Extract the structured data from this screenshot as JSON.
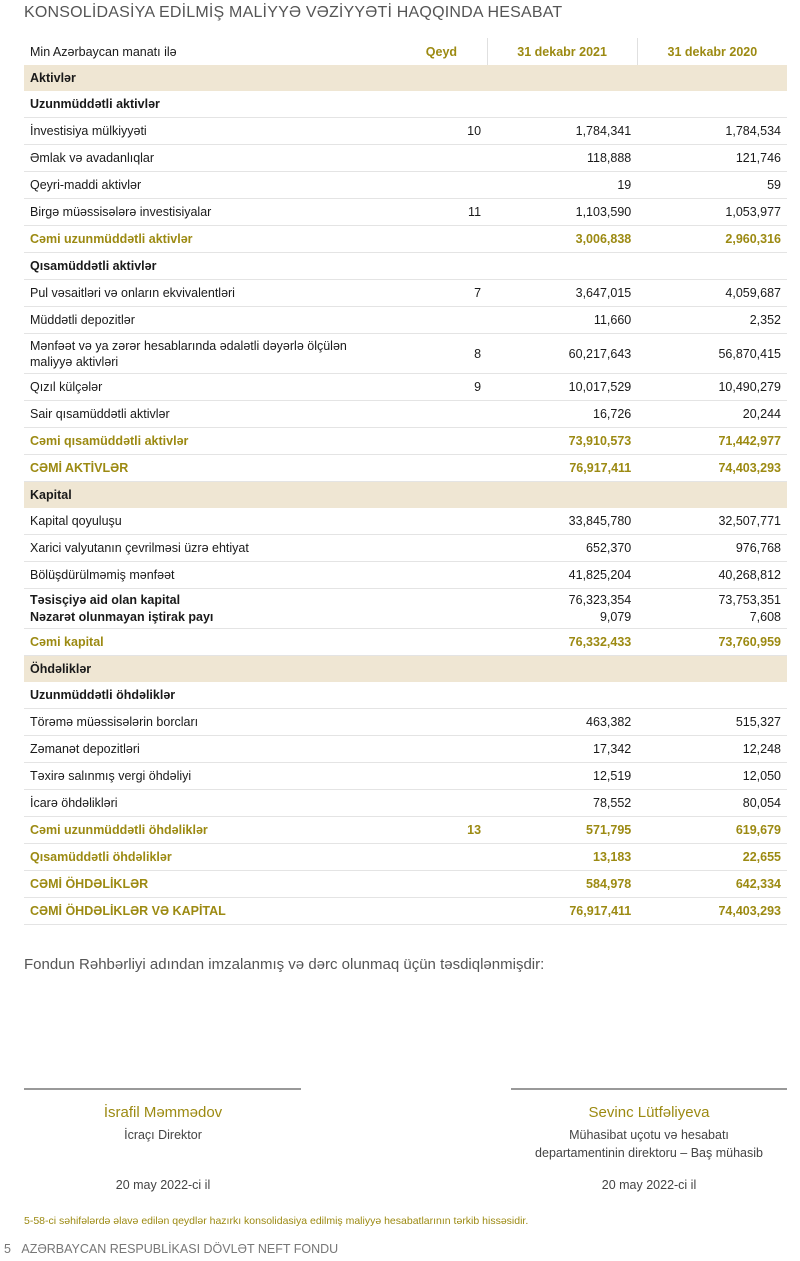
{
  "title": "KONSOLİDASİYA EDİLMİŞ MALİYYƏ VƏZİYYƏTİ HAQQINDA HESABAT",
  "colors": {
    "accent": "#9c8a12",
    "section_bg": "#efe6d3"
  },
  "table": {
    "header": {
      "label": "Min Azərbaycan manatı ilə",
      "note": "Qeyd",
      "col1": "31 dekabr 2021",
      "col2": "31 dekabr 2020"
    },
    "rows": [
      {
        "type": "section",
        "label": "Aktivlər",
        "note": "",
        "v1": "",
        "v2": ""
      },
      {
        "type": "sub",
        "label": "Uzunmüddətli aktivlər",
        "note": "",
        "v1": "",
        "v2": ""
      },
      {
        "type": "item",
        "label": "İnvestisiya mülkiyyəti",
        "note": "10",
        "v1": "1,784,341",
        "v2": "1,784,534"
      },
      {
        "type": "item",
        "label": "Əmlak və avadanlıqlar",
        "note": "",
        "v1": "118,888",
        "v2": "121,746"
      },
      {
        "type": "item",
        "label": "Qeyri-maddi aktivlər",
        "note": "",
        "v1": "19",
        "v2": "59"
      },
      {
        "type": "item",
        "label": "Birgə müəssisələrə investisiyalar",
        "note": "11",
        "v1": "1,103,590",
        "v2": "1,053,977"
      },
      {
        "type": "total",
        "label": "Cəmi uzunmüddətli aktivlər",
        "note": "",
        "v1": "3,006,838",
        "v2": "2,960,316"
      },
      {
        "type": "sub",
        "label": "Qısamüddətli aktivlər",
        "note": "",
        "v1": "",
        "v2": ""
      },
      {
        "type": "item",
        "label": "Pul vəsaitləri və onların ekvivalentləri",
        "note": "7",
        "v1": "3,647,015",
        "v2": "4,059,687"
      },
      {
        "type": "item",
        "label": "Müddətli depozitlər",
        "note": "",
        "v1": "11,660",
        "v2": "2,352"
      },
      {
        "type": "tall",
        "label": "Mənfəət və ya zərər hesablarında ədalətli dəyərlə ölçülən maliyyə aktivləri",
        "note": "8",
        "v1": "60,217,643",
        "v2": "56,870,415"
      },
      {
        "type": "item",
        "label": "Qızıl külçələr",
        "note": "9",
        "v1": "10,017,529",
        "v2": "10,490,279"
      },
      {
        "type": "item",
        "label": "Sair qısamüddətli aktivlər",
        "note": "",
        "v1": "16,726",
        "v2": "20,244"
      },
      {
        "type": "total",
        "label": "Cəmi qısamüddətli aktivlər",
        "note": "",
        "v1": "73,910,573",
        "v2": "71,442,977"
      },
      {
        "type": "total",
        "label": "CƏMİ AKTİVLƏR",
        "note": "",
        "v1": "76,917,411",
        "v2": "74,403,293"
      },
      {
        "type": "section",
        "label": "Kapital",
        "note": "",
        "v1": "",
        "v2": ""
      },
      {
        "type": "item",
        "label": "Kapital qoyuluşu",
        "note": "",
        "v1": "33,845,780",
        "v2": "32,507,771"
      },
      {
        "type": "item",
        "label": "Xarici valyutanın çevrilməsi üzrə ehtiyat",
        "note": "",
        "v1": "652,370",
        "v2": "976,768"
      },
      {
        "type": "item",
        "label": "Bölüşdürülməmiş mənfəət",
        "note": "",
        "v1": "41,825,204",
        "v2": "40,268,812"
      },
      {
        "type": "double",
        "label": "Təsisçiyə aid olan kapital",
        "label2": "Nəzarət olunmayan iştirak payı",
        "note": "",
        "v1": "76,323,354",
        "v1b": "9,079",
        "v2": "73,753,351",
        "v2b": "7,608"
      },
      {
        "type": "total",
        "label": "Cəmi kapital",
        "note": "",
        "v1": "76,332,433",
        "v2": "73,760,959"
      },
      {
        "type": "section",
        "label": "Öhdəliklər",
        "note": "",
        "v1": "",
        "v2": ""
      },
      {
        "type": "sub",
        "label": "Uzunmüddətli öhdəliklər",
        "note": "",
        "v1": "",
        "v2": ""
      },
      {
        "type": "item",
        "label": "Törəmə müəssisələrin borcları",
        "note": "",
        "v1": "463,382",
        "v2": "515,327"
      },
      {
        "type": "item",
        "label": "Zəmanət depozitləri",
        "note": "",
        "v1": "17,342",
        "v2": "12,248"
      },
      {
        "type": "item",
        "label": "Təxirə salınmış vergi öhdəliyi",
        "note": "",
        "v1": "12,519",
        "v2": "12,050"
      },
      {
        "type": "item",
        "label": "İcarə öhdəlikləri",
        "note": "",
        "v1": "78,552",
        "v2": "80,054"
      },
      {
        "type": "total",
        "label": "Cəmi uzunmüddətli öhdəliklər",
        "note": "13",
        "v1": "571,795",
        "v2": "619,679"
      },
      {
        "type": "total",
        "label": "Qısamüddətli öhdəliklər",
        "note": "",
        "v1": "13,183",
        "v2": "22,655"
      },
      {
        "type": "total",
        "label": "CƏMİ ÖHDƏLİKLƏR",
        "note": "",
        "v1": "584,978",
        "v2": "642,334"
      },
      {
        "type": "total",
        "label": "CƏMİ ÖHDƏLİKLƏR VƏ KAPİTAL",
        "note": "",
        "v1": "76,917,411",
        "v2": "74,403,293"
      }
    ]
  },
  "statement": "Fondun Rəhbərliyi adından imzalanmış və dərc olunmaq üçün təsdiqlənmişdir:",
  "signatures": [
    {
      "name": "İsrafil Məmmədov",
      "position": "İcraçı Direktor",
      "position2": "",
      "date": "20 may 2022-ci il"
    },
    {
      "name": "Sevinc Lütfəliyeva",
      "position": "Mühasibat uçotu və hesabatı",
      "position2": "departamentinin direktoru – Baş mühasib",
      "date": "20 may 2022-ci il"
    }
  ],
  "note": "5-58-ci səhifələrdə əlavə edilən qeydlər hazırkı konsolidasiya edilmiş maliyyə hesabatlarının tərkib hissəsidir.",
  "footer": {
    "page": "5",
    "text": "AZƏRBAYCAN RESPUBLİKASI DÖVLƏT NEFT FONDU"
  }
}
